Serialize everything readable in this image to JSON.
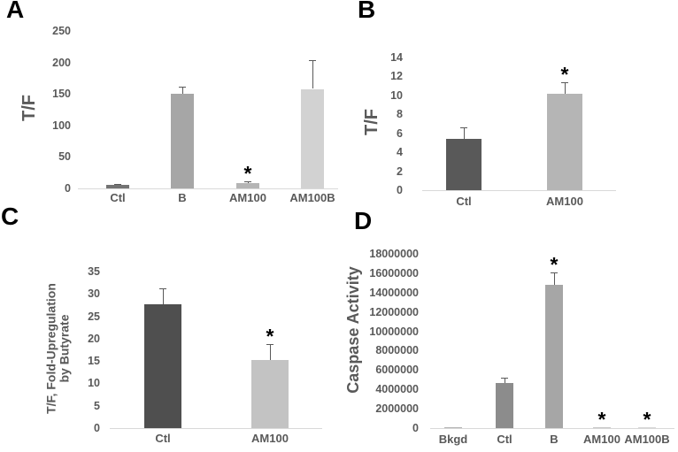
{
  "figure_title": "",
  "sig_marker": "*",
  "text_color": "#595959",
  "error_bar_color": "#595959",
  "panel_letters": [
    "A",
    "B",
    "C",
    "D"
  ],
  "chart_data": [
    {
      "type": "bar",
      "panel": "A",
      "ylabel": "T/F",
      "ylabel_lines": [
        "T/F"
      ],
      "categories": [
        "Ctl",
        "B",
        "AM100",
        "AM100B"
      ],
      "values": [
        5,
        150,
        8,
        158
      ],
      "errors": [
        2,
        12,
        3,
        45
      ],
      "significance": [
        "",
        "",
        "*",
        ""
      ],
      "ylim": [
        0,
        250
      ],
      "yticks": [
        0,
        50,
        100,
        150,
        200,
        250
      ],
      "bar_colors": [
        "#737373",
        "#a6a6a6",
        "#b5b5b5",
        "#d2d2d2"
      ],
      "grid": false,
      "legend": "none"
    },
    {
      "type": "bar",
      "panel": "B",
      "ylabel": "T/F",
      "ylabel_lines": [
        "T/F"
      ],
      "categories": [
        "Ctl",
        "AM100"
      ],
      "values": [
        5.4,
        10.2
      ],
      "errors": [
        1.2,
        1.2
      ],
      "significance": [
        "",
        "*"
      ],
      "ylim": [
        0,
        14
      ],
      "yticks": [
        0,
        2,
        4,
        6,
        8,
        10,
        12,
        14
      ],
      "bar_colors": [
        "#595959",
        "#b5b5b5"
      ],
      "grid": false,
      "legend": "none"
    },
    {
      "type": "bar",
      "panel": "C",
      "ylabel": "T/F, Fold-Upregulation by Butyrate",
      "ylabel_lines": [
        "T/F, Fold-Upregulation",
        "by Butyrate"
      ],
      "categories": [
        "Ctl",
        "AM100"
      ],
      "values": [
        27.7,
        15.2
      ],
      "errors": [
        3.5,
        3.5
      ],
      "significance": [
        "",
        "*"
      ],
      "ylim": [
        0,
        35
      ],
      "yticks": [
        0,
        5,
        10,
        15,
        20,
        25,
        30,
        35
      ],
      "bar_colors": [
        "#4f4f4f",
        "#c3c3c3"
      ],
      "grid": false,
      "legend": "none"
    },
    {
      "type": "bar",
      "panel": "D",
      "ylabel": "Caspase Activity",
      "ylabel_lines": [
        "Caspase Activity"
      ],
      "categories": [
        "Bkgd",
        "Ctl",
        "B",
        "AM100",
        "AM100B"
      ],
      "values": [
        120000,
        4700000,
        14800000,
        70000,
        70000
      ],
      "errors": [
        0,
        500000,
        1300000,
        0,
        0
      ],
      "significance": [
        "",
        "",
        "*",
        "*",
        "*"
      ],
      "ylim": [
        0,
        18000000
      ],
      "yticks": [
        0,
        2000000,
        4000000,
        6000000,
        8000000,
        10000000,
        12000000,
        14000000,
        16000000,
        18000000
      ],
      "bar_colors": [
        "#b3b3b3",
        "#8c8c8c",
        "#a6a6a6",
        "#c6c6c6",
        "#d6d6d6"
      ],
      "grid": false,
      "legend": "none"
    }
  ]
}
